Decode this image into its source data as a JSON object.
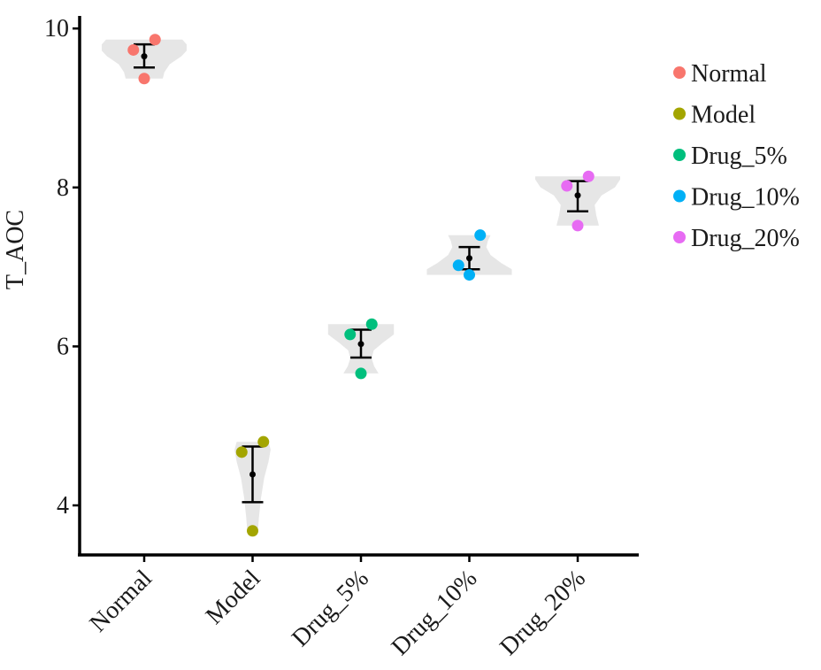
{
  "chart_data": {
    "type": "violin",
    "ylabel": "T_AOC",
    "ylim": [
      3.4,
      10.2
    ],
    "yticks": [
      4,
      6,
      8,
      10
    ],
    "ytick_labels": [
      "4",
      "6",
      "8",
      "10"
    ],
    "categories": [
      "Normal",
      "Model",
      "Drug_5%",
      "Drug_10%",
      "Drug_20%"
    ],
    "colors": [
      "#F8766D",
      "#A3A500",
      "#00BF7D",
      "#00B0F6",
      "#E76BF3"
    ],
    "violin_fill": "#e6e6e6",
    "legend": {
      "position": "right",
      "entries": [
        "Normal",
        "Model",
        "Drug_5%",
        "Drug_10%",
        "Drug_20%"
      ]
    },
    "grid": false,
    "series": [
      {
        "category": "Normal",
        "points": [
          {
            "dx": -0.1,
            "y": 9.73
          },
          {
            "dx": 0.1,
            "y": 9.86
          },
          {
            "dx": 0.0,
            "y": 9.37
          }
        ],
        "mean": 9.65,
        "error_low": 9.51,
        "error_high": 9.8,
        "violin": [
          [
            9.37,
            0.35
          ],
          [
            9.45,
            0.38
          ],
          [
            9.55,
            0.48
          ],
          [
            9.65,
            0.7
          ],
          [
            9.72,
            0.8
          ],
          [
            9.8,
            0.8
          ],
          [
            9.86,
            0.72
          ]
        ]
      },
      {
        "category": "Model",
        "points": [
          {
            "dx": -0.1,
            "y": 4.67
          },
          {
            "dx": 0.1,
            "y": 4.8
          },
          {
            "dx": 0.0,
            "y": 3.68
          }
        ],
        "mean": 4.39,
        "error_low": 4.04,
        "error_high": 4.74,
        "violin": [
          [
            3.68,
            0.1
          ],
          [
            3.85,
            0.12
          ],
          [
            4.1,
            0.16
          ],
          [
            4.35,
            0.22
          ],
          [
            4.55,
            0.3
          ],
          [
            4.7,
            0.34
          ],
          [
            4.8,
            0.3
          ]
        ]
      },
      {
        "category": "Drug_5%",
        "points": [
          {
            "dx": -0.1,
            "y": 6.15
          },
          {
            "dx": 0.1,
            "y": 6.28
          },
          {
            "dx": 0.0,
            "y": 5.66
          }
        ],
        "mean": 6.03,
        "error_low": 5.86,
        "error_high": 6.21,
        "violin": [
          [
            5.66,
            0.33
          ],
          [
            5.75,
            0.25
          ],
          [
            5.85,
            0.2
          ],
          [
            5.95,
            0.24
          ],
          [
            6.05,
            0.42
          ],
          [
            6.15,
            0.62
          ],
          [
            6.28,
            0.62
          ]
        ]
      },
      {
        "category": "Drug_10%",
        "points": [
          {
            "dx": -0.1,
            "y": 7.02
          },
          {
            "dx": 0.1,
            "y": 7.4
          },
          {
            "dx": 0.0,
            "y": 6.9
          }
        ],
        "mean": 7.11,
        "error_low": 6.97,
        "error_high": 7.25,
        "violin": [
          [
            6.9,
            0.8
          ],
          [
            6.97,
            0.8
          ],
          [
            7.05,
            0.6
          ],
          [
            7.15,
            0.4
          ],
          [
            7.25,
            0.32
          ],
          [
            7.33,
            0.35
          ],
          [
            7.4,
            0.4
          ]
        ]
      },
      {
        "category": "Drug_20%",
        "points": [
          {
            "dx": -0.1,
            "y": 8.02
          },
          {
            "dx": 0.1,
            "y": 8.14
          },
          {
            "dx": 0.0,
            "y": 7.52
          }
        ],
        "mean": 7.9,
        "error_low": 7.7,
        "error_high": 8.08,
        "violin": [
          [
            7.52,
            0.4
          ],
          [
            7.65,
            0.35
          ],
          [
            7.78,
            0.32
          ],
          [
            7.9,
            0.45
          ],
          [
            8.0,
            0.7
          ],
          [
            8.1,
            0.8
          ],
          [
            8.14,
            0.8
          ]
        ]
      }
    ]
  }
}
